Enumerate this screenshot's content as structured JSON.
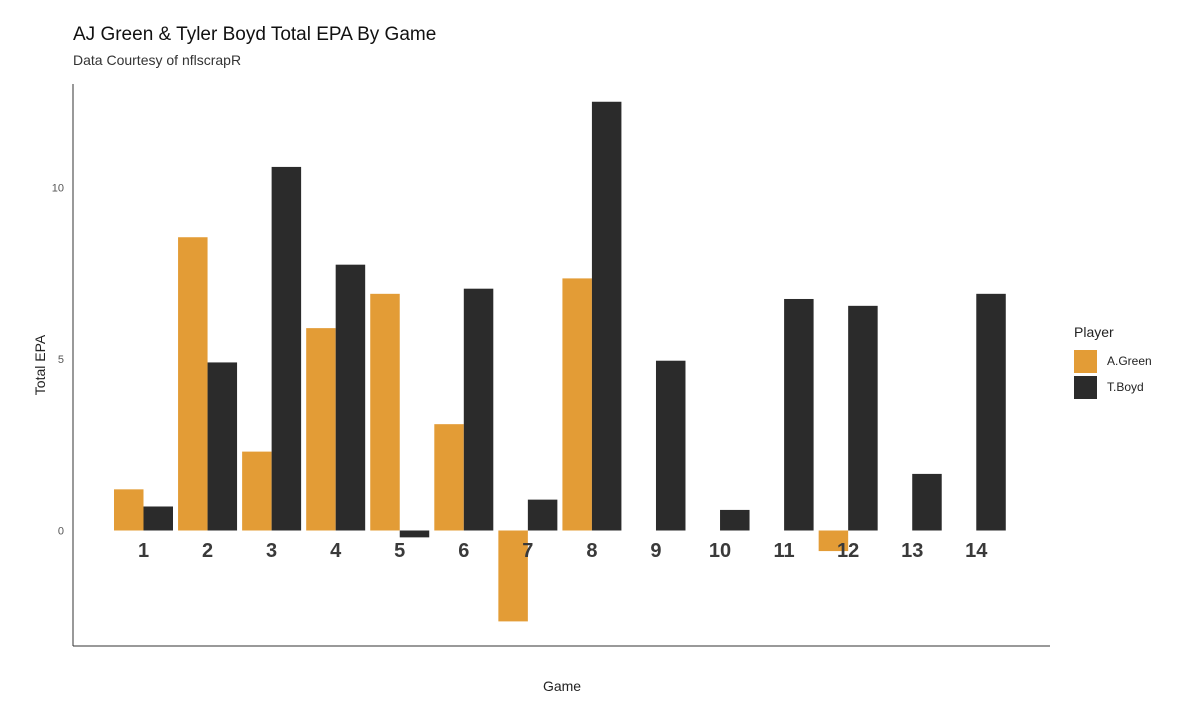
{
  "chart_data": {
    "type": "bar",
    "title": "AJ Green & Tyler Boyd Total EPA By Game",
    "subtitle": "Data Courtesy of nflscrapR",
    "xlabel": "Game",
    "ylabel": "Total EPA",
    "categories": [
      "1",
      "2",
      "3",
      "4",
      "5",
      "6",
      "7",
      "8",
      "9",
      "10",
      "11",
      "12",
      "13",
      "14"
    ],
    "yticks": [
      0,
      5,
      10
    ],
    "ylim": [
      -3.4,
      13.2
    ],
    "grid": false,
    "legend_title": "Player",
    "legend_position": "right",
    "series": [
      {
        "name": "A.Green",
        "color": "#E39C36",
        "values": [
          1.2,
          8.55,
          2.3,
          5.9,
          6.9,
          3.1,
          -2.65,
          7.35,
          0,
          0,
          0,
          -0.6,
          0,
          0
        ]
      },
      {
        "name": "T.Boyd",
        "color": "#2B2B2B",
        "values": [
          0.7,
          4.9,
          10.6,
          7.75,
          -0.2,
          7.05,
          0.9,
          12.5,
          4.95,
          0.6,
          6.75,
          6.55,
          1.65,
          6.9
        ]
      }
    ]
  }
}
